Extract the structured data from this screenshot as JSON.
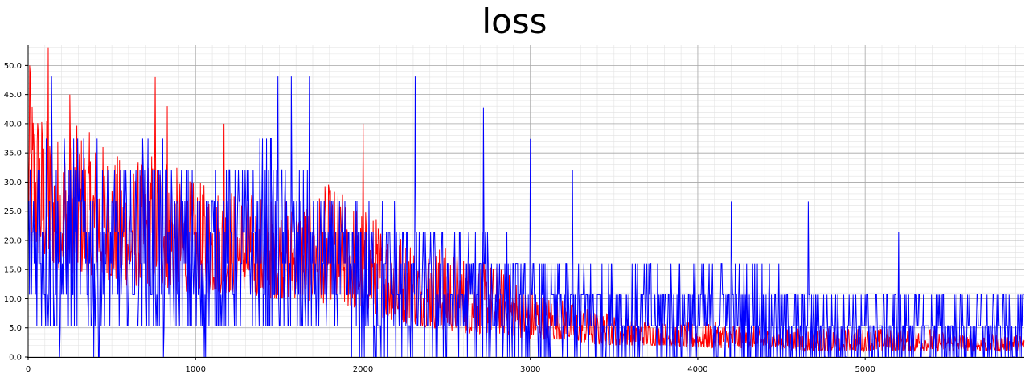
{
  "chart_data": {
    "type": "line",
    "title": "loss",
    "xlabel": "",
    "ylabel": "",
    "xlim": [
      0,
      5950
    ],
    "ylim": [
      0,
      53.5
    ],
    "x_ticks": [
      0,
      1000,
      2000,
      3000,
      4000,
      5000
    ],
    "x_tick_labels": [
      "0",
      "1000",
      "2000",
      "3000",
      "4000",
      "5000"
    ],
    "y_ticks": [
      0,
      5,
      10,
      15,
      20,
      25,
      30,
      35,
      40,
      45,
      50
    ],
    "y_tick_labels": [
      "0.0",
      "5.0",
      "10.0",
      "15.0",
      "20.0",
      "25.0",
      "30.0",
      "35.0",
      "40.0",
      "45.0",
      "50.0"
    ],
    "grid": true,
    "legend": "none",
    "series": [
      {
        "color": "#ff0000",
        "x": [
          0,
          100,
          200,
          300,
          400,
          500,
          600,
          700,
          800,
          900,
          1000,
          1200,
          1400,
          1600,
          1800,
          2000,
          2200,
          2400,
          2600,
          2800,
          3000,
          3200,
          3400,
          3600,
          3800,
          4000,
          4200,
          4400,
          4600,
          4800,
          5000,
          5200,
          5400,
          5600,
          5800,
          5950
        ],
        "envelope_low": [
          18,
          16,
          15,
          14,
          14,
          13,
          12,
          12,
          12,
          11,
          11,
          11,
          10,
          10,
          9,
          8,
          6,
          5,
          4,
          4,
          3,
          3,
          2,
          2,
          2,
          1.5,
          1.5,
          1.5,
          1,
          1,
          1,
          1,
          1,
          1,
          1,
          1
        ],
        "envelope_high": [
          50,
          42,
          38,
          40,
          38,
          36,
          33,
          35,
          38,
          32,
          30,
          30,
          28,
          27,
          30,
          26,
          22,
          20,
          18,
          16,
          12,
          10,
          8,
          7,
          6,
          6,
          6,
          5,
          5,
          5,
          5,
          5,
          5,
          4,
          4,
          4
        ],
        "peaks": [
          [
            10,
            50
          ],
          [
            120,
            53
          ],
          [
            250,
            45
          ],
          [
            760,
            48
          ],
          [
            830,
            43
          ],
          [
            1170,
            40
          ],
          [
            2000,
            40
          ]
        ]
      },
      {
        "color": "#0000ff",
        "x": [
          0,
          100,
          200,
          300,
          400,
          500,
          600,
          700,
          800,
          900,
          1000,
          1200,
          1400,
          1600,
          1800,
          2000,
          2200,
          2400,
          2600,
          2800,
          3000,
          3200,
          3400,
          3600,
          3800,
          4000,
          4200,
          4400,
          4600,
          4800,
          5000,
          5200,
          5400,
          5600,
          5800,
          5950
        ],
        "envelope_low": [
          5.3,
          5.3,
          0,
          5.3,
          0,
          5.3,
          5.3,
          5.3,
          0,
          5.3,
          0,
          5.3,
          5.3,
          0,
          5.3,
          0,
          0,
          0,
          0,
          0,
          0,
          0,
          0,
          0,
          0,
          0,
          0,
          0,
          0,
          0,
          0,
          0,
          0,
          0,
          0,
          0
        ],
        "envelope_high": [
          37.4,
          42.8,
          37.4,
          37.4,
          37.4,
          32.1,
          32.1,
          37.4,
          37.4,
          32.1,
          32.1,
          32.1,
          37.4,
          32.1,
          26.7,
          26.7,
          26.7,
          21.4,
          21.4,
          21.4,
          16,
          16,
          16,
          16,
          16,
          16,
          16,
          16,
          10.7,
          10.7,
          10.7,
          10.7,
          10.7,
          10.7,
          10.7,
          10.7
        ],
        "peaks": [
          [
            140,
            48.1
          ],
          [
            1490,
            48.1
          ],
          [
            1570,
            48.1
          ],
          [
            1680,
            48.1
          ],
          [
            2310,
            48.1
          ],
          [
            2720,
            42.8
          ],
          [
            3000,
            37.4
          ],
          [
            3250,
            32.1
          ],
          [
            4200,
            26.7
          ],
          [
            4660,
            26.7
          ],
          [
            5200,
            21.4
          ],
          [
            5950,
            16
          ]
        ]
      }
    ]
  }
}
